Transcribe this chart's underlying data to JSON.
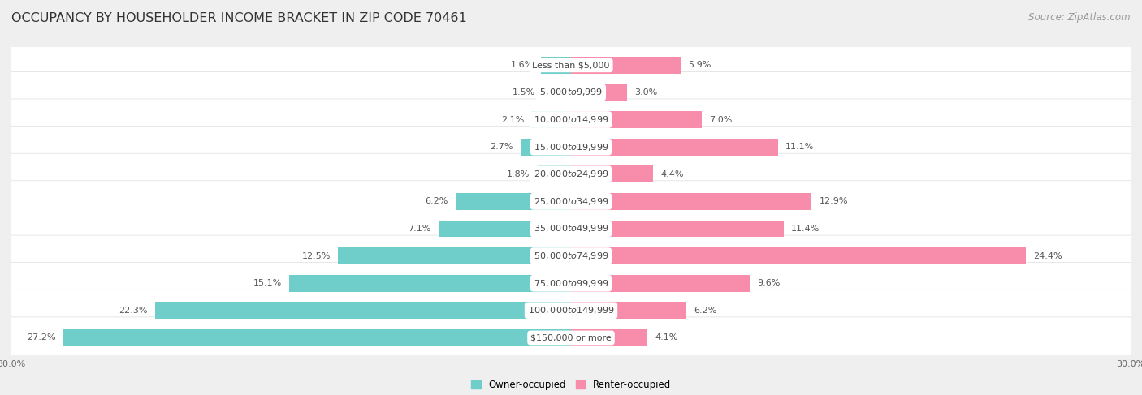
{
  "title": "OCCUPANCY BY HOUSEHOLDER INCOME BRACKET IN ZIP CODE 70461",
  "source": "Source: ZipAtlas.com",
  "categories": [
    "Less than $5,000",
    "$5,000 to $9,999",
    "$10,000 to $14,999",
    "$15,000 to $19,999",
    "$20,000 to $24,999",
    "$25,000 to $34,999",
    "$35,000 to $49,999",
    "$50,000 to $74,999",
    "$75,000 to $99,999",
    "$100,000 to $149,999",
    "$150,000 or more"
  ],
  "owner_values": [
    1.6,
    1.5,
    2.1,
    2.7,
    1.8,
    6.2,
    7.1,
    12.5,
    15.1,
    22.3,
    27.2
  ],
  "renter_values": [
    5.9,
    3.0,
    7.0,
    11.1,
    4.4,
    12.9,
    11.4,
    24.4,
    9.6,
    6.2,
    4.1
  ],
  "owner_color": "#70ceca",
  "renter_color": "#f78daa",
  "background_color": "#efefef",
  "row_background": "#ffffff",
  "axis_max": 30.0,
  "legend_owner": "Owner-occupied",
  "legend_renter": "Renter-occupied",
  "title_fontsize": 11.5,
  "source_fontsize": 8.5,
  "label_fontsize": 8,
  "category_fontsize": 8,
  "tick_fontsize": 8
}
